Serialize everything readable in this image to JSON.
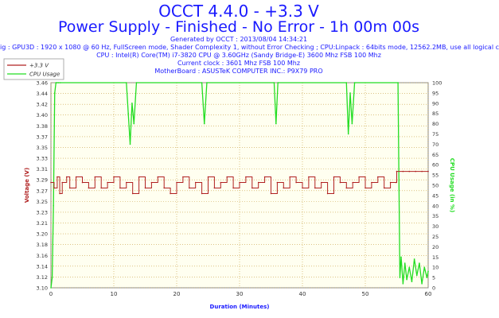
{
  "header": {
    "title": "OCCT 4.4.0 - +3.3 V",
    "subtitle": "Power Supply - Finished - No Error - 1h 00m 00s",
    "info_lines": [
      "Generated by OCCT : 2013/08/04 14:34:21",
      "ig : GPU3D : 1920 x 1080 @ 60 Hz, FullScreen mode, Shader Complexity 1, without Error Checking ; CPU:Linpack : 64bits mode, 12562.2MB, use all logical c",
      "CPU : Intel(R) Core(TM) i7-3820 CPU @ 3.60GHz (Sandy Bridge-E) 3600 Mhz FSB 100 Mhz",
      "Current clock : 3601 Mhz FSB 100 Mhz",
      "MotherBoard : ASUSTeK COMPUTER INC.: P9X79 PRO"
    ]
  },
  "colors": {
    "voltage": "#b02020",
    "cpu": "#22dd22",
    "grid": "#c8a040",
    "plot_bg": "#fffff0",
    "title": "#1a1aff"
  },
  "chart_data": {
    "type": "line",
    "xlabel": "Duration (Minutes)",
    "ylabel": "Voltage (V)",
    "y2label": "CPU Usage (in %)",
    "xlim": [
      0,
      60
    ],
    "ylim": [
      3.1,
      3.47
    ],
    "y2lim": [
      0,
      100
    ],
    "x_ticks": [
      0,
      10,
      20,
      30,
      40,
      50,
      60
    ],
    "y_ticks": [
      "3.10",
      "3.12",
      "3.14",
      "3.16",
      "3.18",
      "3.20",
      "3.21",
      "3.23",
      "3.25",
      "3.27",
      "3.29",
      "3.31",
      "3.33",
      "3.35",
      "3.37",
      "3.38",
      "3.40",
      "3.42",
      "3.44",
      "3.46"
    ],
    "y2_ticks": [
      0,
      5,
      10,
      15,
      20,
      25,
      30,
      35,
      40,
      45,
      50,
      55,
      60,
      65,
      70,
      75,
      80,
      85,
      90,
      95,
      100
    ],
    "grid": true,
    "legend_position": "top-left",
    "series": [
      {
        "name": "+3.3 V",
        "axis": "left",
        "x": [
          0,
          0.5,
          1,
          1.4,
          1.8,
          2.5,
          3,
          4,
          5,
          6,
          7,
          8,
          9,
          10,
          11,
          12,
          13,
          14,
          15,
          16,
          17,
          18,
          19,
          20,
          21,
          22,
          23,
          24,
          25,
          26,
          27,
          28,
          29,
          30,
          31,
          32,
          33,
          34,
          35,
          36,
          37,
          38,
          39,
          40,
          41,
          42,
          43,
          44,
          45,
          46,
          47,
          48,
          49,
          50,
          51,
          52,
          53,
          54,
          54.9,
          55,
          56,
          57,
          58,
          59,
          60
        ],
        "y": [
          3.29,
          3.28,
          3.3,
          3.27,
          3.29,
          3.3,
          3.28,
          3.3,
          3.29,
          3.28,
          3.3,
          3.28,
          3.29,
          3.3,
          3.28,
          3.29,
          3.27,
          3.3,
          3.28,
          3.29,
          3.3,
          3.28,
          3.27,
          3.29,
          3.3,
          3.28,
          3.29,
          3.27,
          3.3,
          3.28,
          3.29,
          3.3,
          3.28,
          3.29,
          3.3,
          3.28,
          3.29,
          3.3,
          3.27,
          3.29,
          3.28,
          3.3,
          3.29,
          3.28,
          3.3,
          3.28,
          3.29,
          3.27,
          3.3,
          3.29,
          3.28,
          3.29,
          3.3,
          3.28,
          3.29,
          3.3,
          3.28,
          3.29,
          3.29,
          3.31,
          3.31,
          3.31,
          3.31,
          3.31,
          3.31
        ]
      },
      {
        "name": "CPU Usage",
        "axis": "right",
        "x": [
          0,
          0.2,
          0.4,
          0.6,
          0.8,
          1,
          1.2,
          1.5,
          12,
          12.3,
          12.6,
          12.9,
          13.2,
          13.6,
          24,
          24.4,
          24.8,
          35.5,
          35.8,
          36.1,
          47,
          47.3,
          47.6,
          47.9,
          48.3,
          55.2,
          55.5,
          55.7,
          56,
          56.3,
          56.6,
          57,
          57.4,
          57.8,
          58.2,
          58.6,
          59,
          59.4,
          59.8,
          60
        ],
        "y": [
          0,
          5,
          40,
          95,
          100,
          100,
          100,
          100,
          100,
          85,
          70,
          90,
          80,
          100,
          100,
          80,
          100,
          100,
          80,
          100,
          100,
          75,
          95,
          80,
          100,
          100,
          5,
          15,
          2,
          12,
          4,
          10,
          3,
          14,
          6,
          12,
          2,
          10,
          5,
          8
        ]
      }
    ]
  }
}
